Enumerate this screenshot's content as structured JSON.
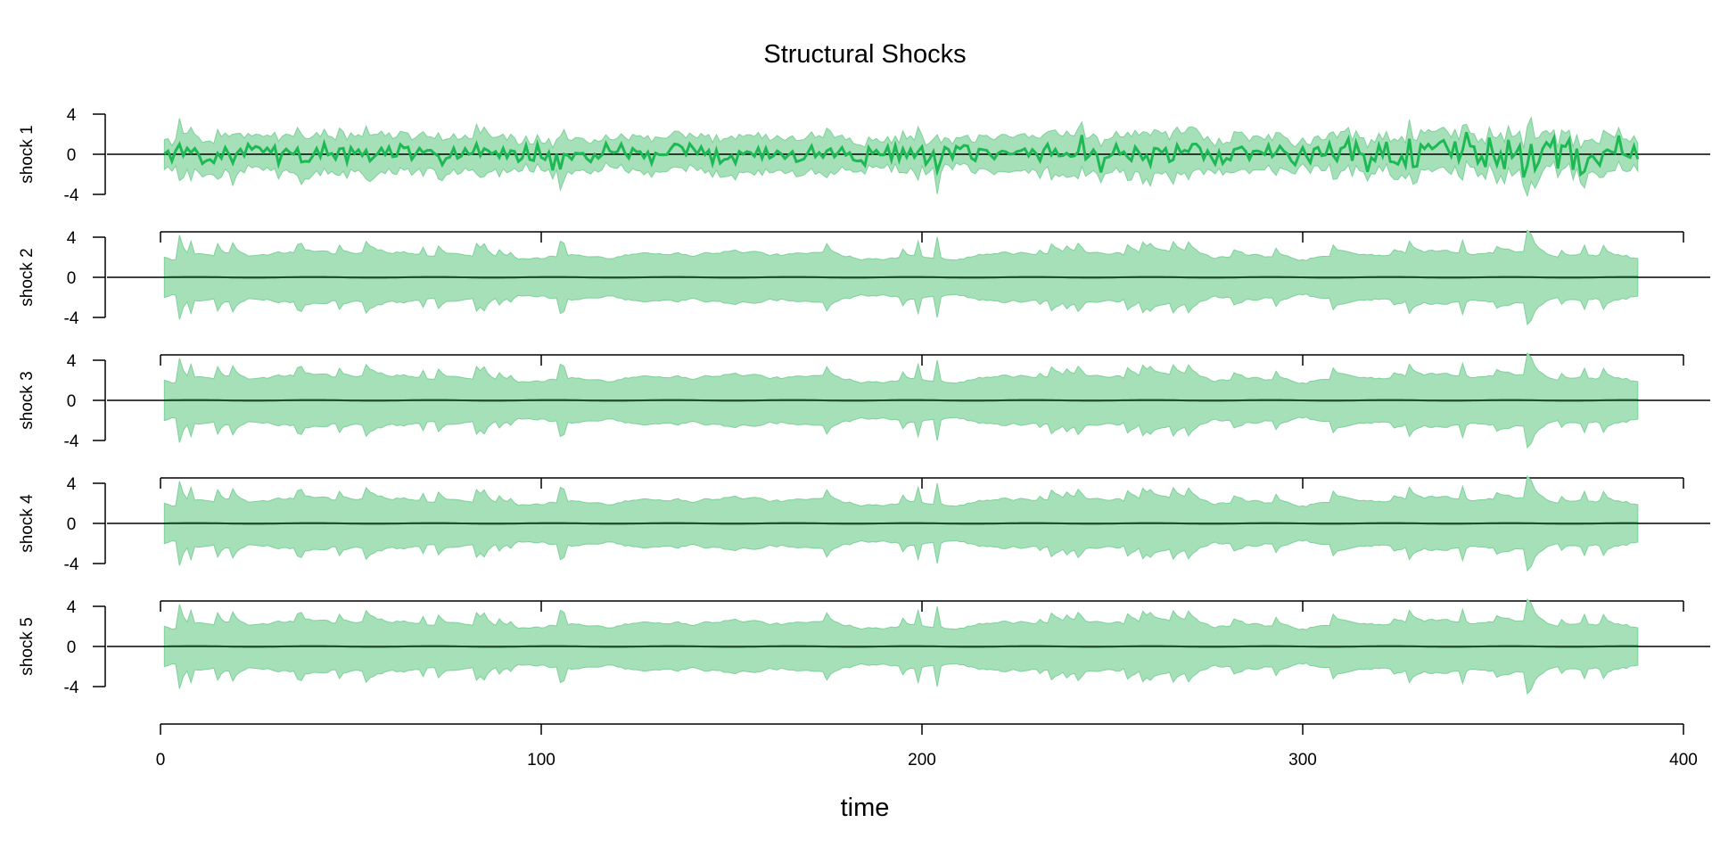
{
  "chart_data": {
    "type": "area",
    "title": "Structural Shocks",
    "xlabel": "time",
    "xlim": [
      0,
      400
    ],
    "x_ticks": [
      "0",
      "100",
      "200",
      "300",
      "400"
    ],
    "n_points": 388,
    "band_color": "#A6E0B8",
    "band_edge_color": "#7DD19A",
    "median_color": "#1DB954",
    "panels": [
      {
        "ylabel": "shock 1",
        "ylim": [
          -4,
          4
        ],
        "y_ticks": [
          "-4",
          "0",
          "4"
        ],
        "median": "varying",
        "band": "wide-varying"
      },
      {
        "ylabel": "shock 2",
        "ylim": [
          -4,
          4
        ],
        "y_ticks": [
          "-4",
          "0",
          "4"
        ],
        "median": "near-zero",
        "band": "symmetric"
      },
      {
        "ylabel": "shock 3",
        "ylim": [
          -4,
          4
        ],
        "y_ticks": [
          "-4",
          "0",
          "4"
        ],
        "median": "near-zero",
        "band": "symmetric"
      },
      {
        "ylabel": "shock 4",
        "ylim": [
          -4,
          4
        ],
        "y_ticks": [
          "-4",
          "0",
          "4"
        ],
        "median": "near-zero",
        "band": "symmetric"
      },
      {
        "ylabel": "shock 5",
        "ylim": [
          -4,
          4
        ],
        "y_ticks": [
          "-4",
          "0",
          "4"
        ],
        "median": "near-zero",
        "band": "symmetric"
      }
    ],
    "zero_line": true,
    "grid": false
  }
}
